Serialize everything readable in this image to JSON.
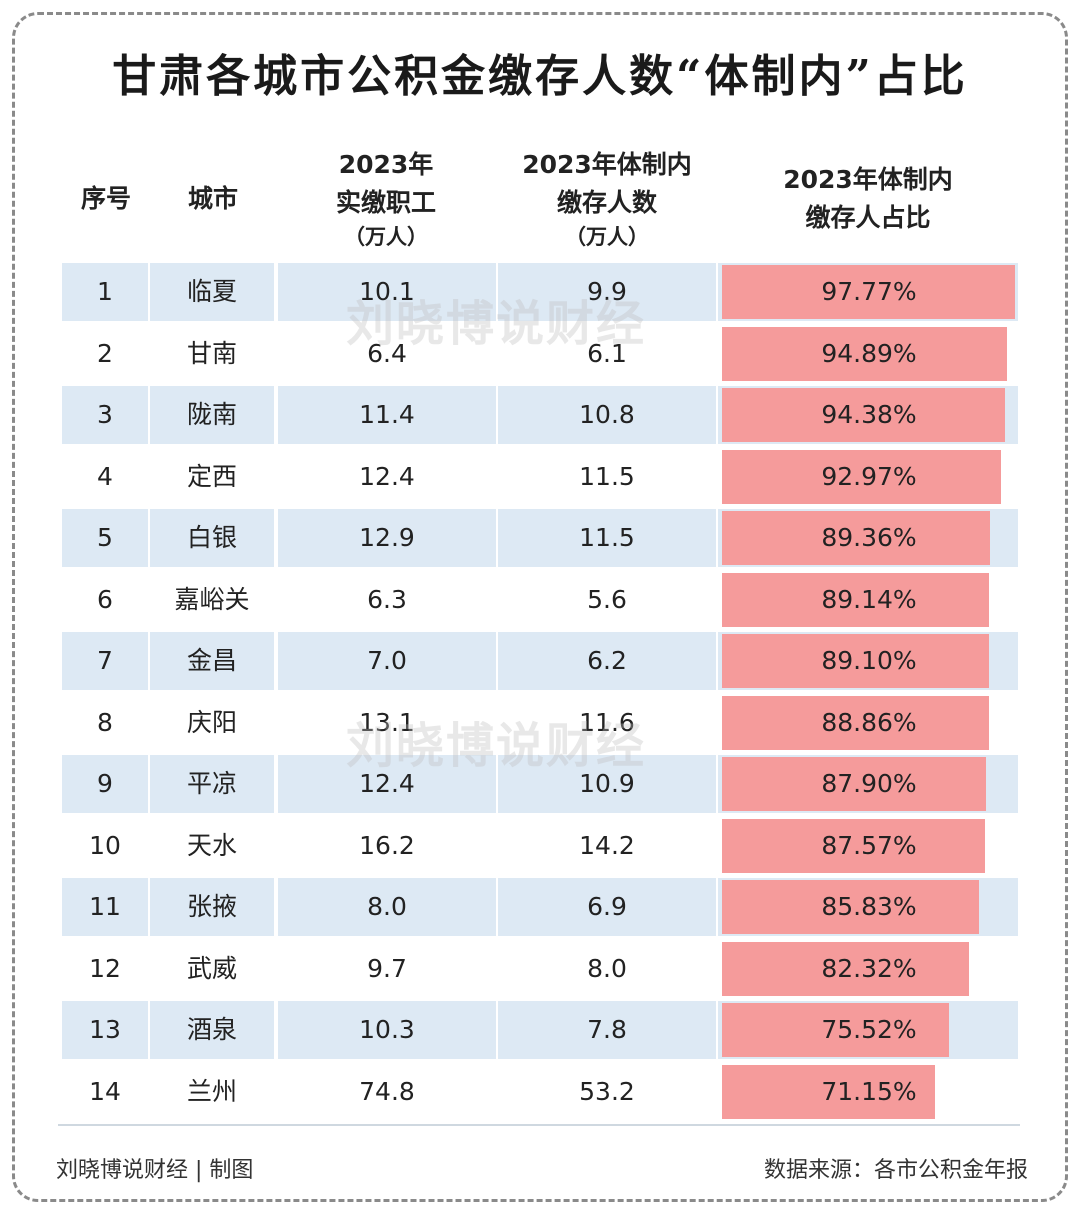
{
  "title": "甘肃各城市公积金缴存人数“体制内”占比",
  "headers": {
    "index": "序号",
    "city": "城市",
    "workers_line1": "2023年",
    "workers_line2": "实缴职工",
    "workers_unit": "（万人）",
    "gov_line1": "2023年体制内",
    "gov_line2": "缴存人数",
    "gov_unit": "（万人）",
    "share_line1": "2023年体制内",
    "share_line2": "缴存人占比"
  },
  "rows": [
    {
      "index": "1",
      "city": "临夏",
      "workers": "10.1",
      "gov": "9.9",
      "share": "97.77%",
      "share_value": 97.77
    },
    {
      "index": "2",
      "city": "甘南",
      "workers": "6.4",
      "gov": "6.1",
      "share": "94.89%",
      "share_value": 94.89
    },
    {
      "index": "3",
      "city": "陇南",
      "workers": "11.4",
      "gov": "10.8",
      "share": "94.38%",
      "share_value": 94.38
    },
    {
      "index": "4",
      "city": "定西",
      "workers": "12.4",
      "gov": "11.5",
      "share": "92.97%",
      "share_value": 92.97
    },
    {
      "index": "5",
      "city": "白银",
      "workers": "12.9",
      "gov": "11.5",
      "share": "89.36%",
      "share_value": 89.36
    },
    {
      "index": "6",
      "city": "嘉峪关",
      "workers": "6.3",
      "gov": "5.6",
      "share": "89.14%",
      "share_value": 89.14
    },
    {
      "index": "7",
      "city": "金昌",
      "workers": "7.0",
      "gov": "6.2",
      "share": "89.10%",
      "share_value": 89.1
    },
    {
      "index": "8",
      "city": "庆阳",
      "workers": "13.1",
      "gov": "11.6",
      "share": "88.86%",
      "share_value": 88.86
    },
    {
      "index": "9",
      "city": "平凉",
      "workers": "12.4",
      "gov": "10.9",
      "share": "87.90%",
      "share_value": 87.9
    },
    {
      "index": "10",
      "city": "天水",
      "workers": "16.2",
      "gov": "14.2",
      "share": "87.57%",
      "share_value": 87.57
    },
    {
      "index": "11",
      "city": "张掖",
      "workers": "8.0",
      "gov": "6.9",
      "share": "85.83%",
      "share_value": 85.83
    },
    {
      "index": "12",
      "city": "武威",
      "workers": "9.7",
      "gov": "8.0",
      "share": "82.32%",
      "share_value": 82.32
    },
    {
      "index": "13",
      "city": "酒泉",
      "workers": "10.3",
      "gov": "7.8",
      "share": "75.52%",
      "share_value": 75.52
    },
    {
      "index": "14",
      "city": "兰州",
      "workers": "74.8",
      "gov": "53.2",
      "share": "71.15%",
      "share_value": 71.15
    }
  ],
  "watermark": "刘晓博说财经",
  "footer": {
    "left": "刘晓博说财经 | 制图",
    "right": "数据来源：各市公积金年报"
  },
  "colors": {
    "bar": "#f59b9b",
    "row_shade": "#dde9f4"
  }
}
